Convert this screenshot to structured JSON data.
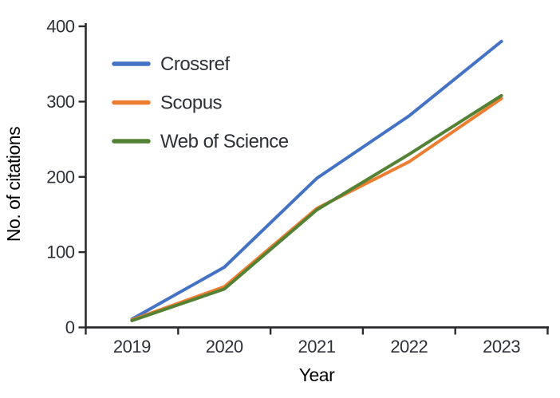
{
  "chart_data": {
    "type": "line",
    "title": "",
    "xlabel": "Year",
    "ylabel": "No. of citations",
    "categories": [
      "2019",
      "2020",
      "2021",
      "2022",
      "2023"
    ],
    "series": [
      {
        "name": "Crossref",
        "color": "#4472c4",
        "values": [
          11,
          80,
          198,
          281,
          380
        ]
      },
      {
        "name": "Scopus",
        "color": "#ed7d31",
        "values": [
          10,
          54,
          158,
          220,
          304
        ]
      },
      {
        "name": "Web of Science",
        "color": "#548235",
        "values": [
          9,
          51,
          156,
          230,
          308
        ]
      }
    ],
    "ylim": [
      0,
      400
    ],
    "yticks": [
      0,
      100,
      200,
      300,
      400
    ],
    "grid": false,
    "legend_position": "upper-left-inside",
    "axis_color": "#2b2b2e",
    "text_color": "#2e3038",
    "line_width": 4
  }
}
